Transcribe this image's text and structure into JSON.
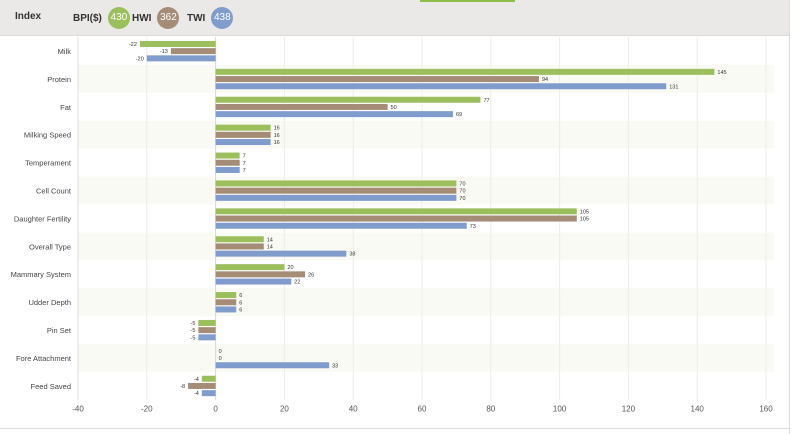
{
  "header": {
    "index_label": "Index",
    "legend": [
      {
        "name": "BPI($)",
        "value": "430",
        "color": "#9bbf5d"
      },
      {
        "name": "HWI",
        "value": "362",
        "color": "#a58c77"
      },
      {
        "name": "TWI",
        "value": "438",
        "color": "#7f9ccc"
      }
    ]
  },
  "chart_data": {
    "type": "bar",
    "orientation": "horizontal",
    "categories": [
      "Milk",
      "Protein",
      "Fat",
      "Milking Speed",
      "Temperament",
      "Cell Count",
      "Daughter Fertility",
      "Overall Type",
      "Mammary System",
      "Udder Depth",
      "Pin Set",
      "Fore Attachment",
      "Feed Saved"
    ],
    "series": [
      {
        "name": "BPI($)",
        "color": "#9bbf5d",
        "values": [
          -22,
          145,
          77,
          16,
          7,
          70,
          105,
          14,
          20,
          6,
          -5,
          0,
          -4
        ]
      },
      {
        "name": "HWI",
        "color": "#a58c77",
        "values": [
          -13,
          94,
          50,
          16,
          7,
          70,
          105,
          14,
          26,
          6,
          -5,
          0,
          -8
        ]
      },
      {
        "name": "TWI",
        "color": "#7f9ccc",
        "values": [
          -20,
          131,
          69,
          16,
          7,
          70,
          73,
          38,
          22,
          6,
          -5,
          33,
          -4
        ]
      }
    ],
    "xlim": [
      -40,
      160
    ],
    "xticks": [
      "-40",
      "-20",
      "0",
      "20",
      "40",
      "60",
      "80",
      "100",
      "120",
      "140",
      "160"
    ],
    "grid": true,
    "data_labels": true,
    "legend": "top-left"
  }
}
